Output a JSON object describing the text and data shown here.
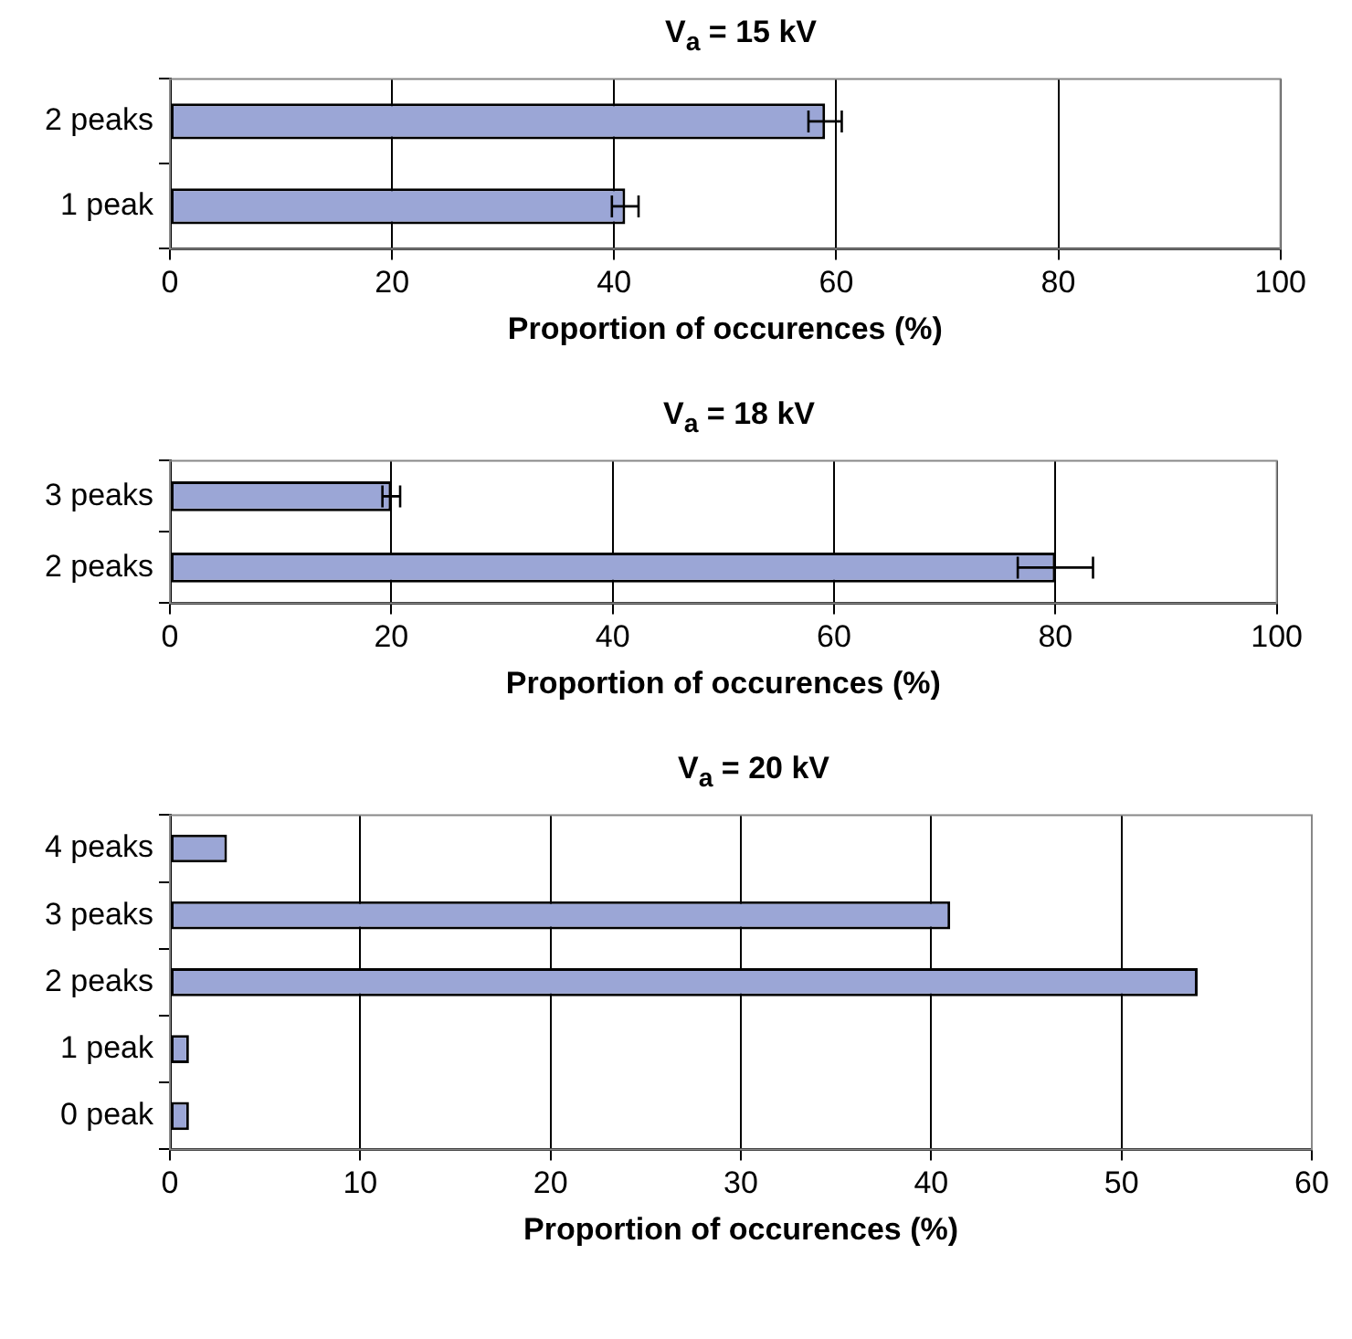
{
  "chart_data": [
    {
      "type": "bar",
      "orientation": "horizontal",
      "title": "V$_{a}$ = 15 kV",
      "xlabel": "Proportion of occurences (%)",
      "categories": [
        "2 peaks",
        "1 peak"
      ],
      "values": [
        59,
        41
      ],
      "errors": [
        1.5,
        1.2
      ],
      "color": "#9ba6d6",
      "xlim": [
        0,
        100
      ],
      "xticks": [
        0,
        20,
        40,
        60,
        80,
        100
      ],
      "grid": "x",
      "legend": false
    },
    {
      "type": "bar",
      "orientation": "horizontal",
      "title": "V$_{a}$ = 18 kV",
      "xlabel": "Proportion of occurences (%)",
      "categories": [
        "3 peaks",
        "2 peaks"
      ],
      "values": [
        20,
        80
      ],
      "errors": [
        0.8,
        3.4
      ],
      "color": "#9ba6d6",
      "xlim": [
        0,
        100
      ],
      "xticks": [
        0,
        20,
        40,
        60,
        80,
        100
      ],
      "grid": "x",
      "legend": false
    },
    {
      "type": "bar",
      "orientation": "horizontal",
      "title": "V$_{a}$ = 20 kV",
      "xlabel": "Proportion of occurences (%)",
      "categories": [
        "4 peaks",
        "3 peaks",
        "2 peaks",
        "1 peak",
        "0 peak"
      ],
      "values": [
        3,
        41,
        54,
        1,
        1
      ],
      "color": "#9ba6d6",
      "xlim": [
        0,
        60
      ],
      "xticks": [
        0,
        10,
        20,
        30,
        40,
        50,
        60
      ],
      "grid": "x",
      "legend": false
    }
  ]
}
